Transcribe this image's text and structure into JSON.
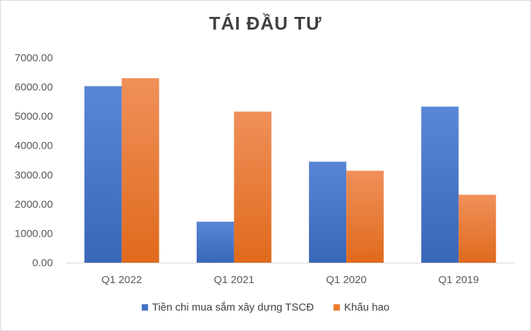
{
  "chart_data": {
    "type": "bar",
    "title": "TÁI ĐẦU TƯ",
    "categories": [
      "Q1 2022",
      "Q1 2021",
      "Q1 2020",
      "Q1 2019"
    ],
    "series": [
      {
        "name": "Tiền chi mua sắm xây dựng TSCĐ",
        "values": [
          6030,
          1400,
          3450,
          5330
        ],
        "color": "#4472c4"
      },
      {
        "name": "Khấu hao",
        "values": [
          6300,
          5160,
          3140,
          2320
        ],
        "color": "#ed7d31"
      }
    ],
    "y_ticks": [
      "0.00",
      "1000.00",
      "2000.00",
      "3000.00",
      "4000.00",
      "5000.00",
      "6000.00",
      "7000.00"
    ],
    "ylim": [
      0,
      7000
    ],
    "grid": false,
    "legend_position": "bottom"
  }
}
